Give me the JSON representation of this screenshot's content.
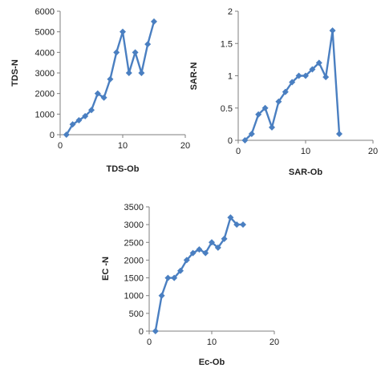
{
  "chart_data": [
    {
      "type": "line",
      "xlabel": "TDS-Ob",
      "ylabel": "TDS-N",
      "xlim": [
        0,
        20
      ],
      "ylim": [
        0,
        6000
      ],
      "xticks": [
        "0",
        "10",
        "20"
      ],
      "yticks": [
        "0",
        "1000",
        "2000",
        "3000",
        "4000",
        "5000",
        "6000"
      ],
      "grid": false,
      "series": [
        {
          "x": [
            1,
            2,
            3,
            4,
            5,
            6,
            7,
            8,
            9,
            10,
            11,
            12,
            13,
            14,
            15
          ],
          "values": [
            0,
            500,
            700,
            900,
            1200,
            2000,
            1800,
            2700,
            4000,
            5000,
            3000,
            4000,
            3000,
            4400,
            5500
          ]
        }
      ],
      "color": "#4a7fc1"
    },
    {
      "type": "line",
      "xlabel": "SAR-Ob",
      "ylabel": "SAR-N",
      "xlim": [
        0,
        20
      ],
      "ylim": [
        0,
        2
      ],
      "xticks": [
        "0",
        "10",
        "20"
      ],
      "yticks": [
        "0",
        "0.5",
        "1",
        "1.5",
        "2"
      ],
      "grid": false,
      "series": [
        {
          "x": [
            1,
            2,
            3,
            4,
            5,
            6,
            7,
            8,
            9,
            10,
            11,
            12,
            13,
            14,
            15
          ],
          "values": [
            0,
            0.1,
            0.4,
            0.5,
            0.2,
            0.6,
            0.75,
            0.9,
            1.0,
            1.0,
            1.1,
            1.2,
            0.98,
            1.7,
            0.1
          ]
        }
      ],
      "color": "#4a7fc1"
    },
    {
      "type": "line",
      "xlabel": "Ec-Ob",
      "ylabel": "EC -N",
      "xlim": [
        0,
        20
      ],
      "ylim": [
        0,
        3500
      ],
      "xticks": [
        "0",
        "10",
        "20"
      ],
      "yticks": [
        "0",
        "500",
        "1000",
        "1500",
        "2000",
        "2500",
        "3000",
        "3500"
      ],
      "grid": false,
      "series": [
        {
          "x": [
            1,
            2,
            3,
            4,
            5,
            6,
            7,
            8,
            9,
            10,
            11,
            12,
            13,
            14,
            15
          ],
          "values": [
            0,
            1000,
            1500,
            1500,
            1700,
            2000,
            2200,
            2300,
            2200,
            2500,
            2350,
            2600,
            3200,
            3000,
            3000
          ]
        }
      ],
      "color": "#4a7fc1"
    }
  ]
}
